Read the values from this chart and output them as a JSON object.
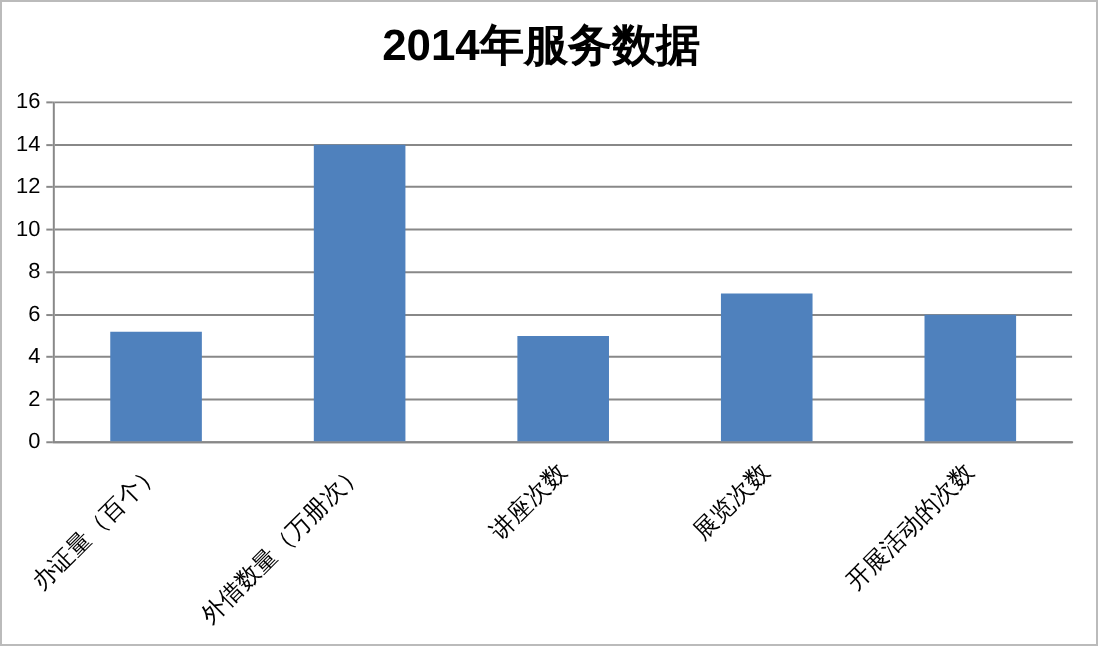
{
  "chart_data": {
    "type": "bar",
    "title": "2014年服务数据",
    "categories": [
      "办证量（百个）",
      "外借数量（万册次）",
      "讲座次数",
      "展览次数",
      "开展活动的次数"
    ],
    "values": [
      5.2,
      14,
      5,
      7,
      6
    ],
    "color": "#4f81bd",
    "ylim": [
      0,
      16
    ],
    "yticks": [
      0,
      2,
      4,
      6,
      8,
      10,
      12,
      14,
      16
    ],
    "grid": "y"
  }
}
